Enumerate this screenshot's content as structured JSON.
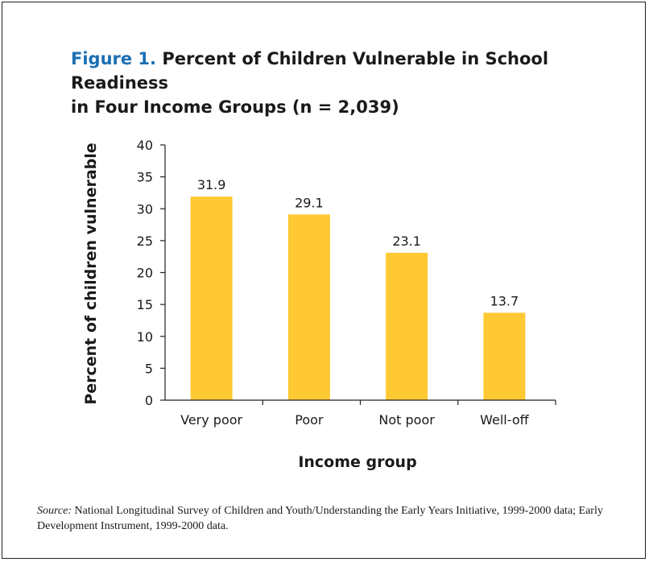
{
  "figure": {
    "label": "Figure 1.",
    "title_line1": "Percent of Children Vulnerable in School Readiness",
    "title_line2": "in Four Income Groups (n = 2,039)"
  },
  "source": {
    "label": "Source:",
    "text": "National Longitudinal Survey of Children and Youth/Understanding the Early Years Initiative, 1999-2000 data; Early Development Instrument, 1999-2000 data."
  },
  "colors": {
    "bar": "#ffc933",
    "axis": "#222222"
  },
  "chart_data": {
    "type": "bar",
    "title": "Percent of Children Vulnerable in School Readiness in Four Income Groups (n = 2,039)",
    "xlabel": "Income group",
    "ylabel": "Percent of children vulnerable",
    "categories": [
      "Very poor",
      "Poor",
      "Not poor",
      "Well-off"
    ],
    "values": [
      31.9,
      29.1,
      23.1,
      13.7
    ],
    "value_labels": [
      "31.9",
      "29.1",
      "23.1",
      "13.7"
    ],
    "ylim": [
      0,
      40
    ],
    "yticks": [
      0,
      5,
      10,
      15,
      20,
      25,
      30,
      35,
      40
    ],
    "grid": false,
    "legend": "none"
  }
}
